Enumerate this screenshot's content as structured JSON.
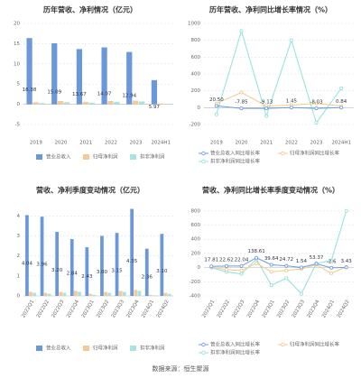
{
  "chart_data": [
    {
      "type": "bar",
      "title": "历年营收、净利情况（亿元）",
      "categories": [
        "2019",
        "2020",
        "2021",
        "2022",
        "2023",
        "2024H1"
      ],
      "series": [
        {
          "name": "营业总收入",
          "color": "#6b98db",
          "values": [
            16.38,
            15.09,
            13.67,
            14.07,
            12.94,
            5.97
          ]
        },
        {
          "name": "归母净利润",
          "color": "#f6c996",
          "values": [
            0.5,
            0.8,
            0.6,
            0.8,
            0.9,
            0.2
          ]
        },
        {
          "name": "扣非净利润",
          "color": "#a9e2e2",
          "values": [
            0.3,
            0.5,
            0.4,
            0.6,
            0.7,
            0.1
          ]
        }
      ],
      "ylim": [
        -5,
        20
      ],
      "yticks": [
        -5,
        0,
        5,
        10,
        15,
        20
      ],
      "grid": true
    },
    {
      "type": "line",
      "title": "历年营收、净利同比增长率情况（%）",
      "categories": [
        "2019",
        "2020",
        "2021",
        "2022",
        "2023",
        "2024H1"
      ],
      "series": [
        {
          "name": "营业总收入同比增长率",
          "color": "#6d9be0",
          "values": [
            20.5,
            -7.85,
            -9.13,
            1.45,
            -8.03,
            0.84
          ],
          "value_labels": [
            "20.50",
            "-7.85",
            "-9.13",
            "1.45",
            "-8.03",
            "0.84"
          ]
        },
        {
          "name": "归母净利润同比增长率",
          "color": "#f5c88a",
          "values": [
            50,
            180,
            20,
            30,
            50,
            20
          ]
        },
        {
          "name": "扣非净利润同比增长率",
          "color": "#8fe0dc",
          "values": [
            -80,
            910,
            -100,
            800,
            -180,
            230
          ]
        }
      ],
      "ylim": [
        -200,
        1000
      ],
      "yticks": [
        -200,
        0,
        200,
        400,
        600,
        800,
        1000
      ],
      "grid": true
    },
    {
      "type": "bar",
      "title": "营收、净利季度变动情况（亿元）",
      "categories": [
        "2022Q1",
        "2022Q2",
        "2022Q3",
        "2022Q4",
        "2023Q1",
        "2023Q2",
        "2023Q3",
        "2023Q4",
        "2024Q1",
        "2024Q2"
      ],
      "series": [
        {
          "name": "营业总收入",
          "color": "#6b98db",
          "values": [
            4.04,
            3.96,
            3.2,
            2.84,
            2.43,
            3.0,
            3.15,
            4.35,
            2.36,
            3.1
          ],
          "value_labels": [
            "4.04",
            "3.96",
            "3.20",
            "2.84",
            "2.43",
            "3.00",
            "3.15",
            "4.35",
            "2.36",
            "3.10"
          ]
        },
        {
          "name": "归母净利润",
          "color": "#f6c996",
          "values": [
            0.2,
            0.15,
            0.2,
            0.25,
            0.1,
            0.2,
            0.25,
            0.3,
            0.05,
            0.15
          ]
        },
        {
          "name": "扣非净利润",
          "color": "#a9e2e2",
          "values": [
            0.15,
            0.1,
            0.15,
            0.2,
            0.05,
            0.15,
            0.2,
            0.25,
            0.03,
            0.1
          ]
        }
      ],
      "ylim": [
        0,
        4.6
      ],
      "yticks": [
        0,
        1,
        2,
        3,
        4
      ],
      "grid": true
    },
    {
      "type": "line",
      "title": "营收、净利同比增长率季度变动情况（%）",
      "categories": [
        "2022Q1",
        "2022Q2",
        "2022Q3",
        "2022Q4",
        "2023Q1",
        "2023Q2",
        "2023Q3",
        "2023Q4",
        "2024Q1",
        "2024Q2"
      ],
      "series": [
        {
          "name": "营业总收入同比增长率",
          "color": "#6d9be0",
          "values": [
            17.81,
            22.62,
            22.04,
            138.61,
            39.64,
            24.72,
            1.54,
            53.37,
            -2.6,
            3.43
          ]
        },
        {
          "name": "归母净利润同比增长率",
          "color": "#f5c88a",
          "values": [
            10,
            -30,
            -40,
            60,
            -60,
            -40,
            -20,
            40,
            -80,
            10
          ]
        },
        {
          "name": "扣非净利润同比增长率",
          "color": "#8fe0dc",
          "values": [
            0,
            -60,
            -90,
            120,
            -250,
            -150,
            -370,
            60,
            100,
            800
          ]
        }
      ],
      "ylim": [
        -400,
        900
      ],
      "yticks": [
        -400,
        -200,
        0,
        200,
        400,
        600,
        800
      ],
      "grid": true
    }
  ],
  "source": "数据来源：恒生聚源"
}
